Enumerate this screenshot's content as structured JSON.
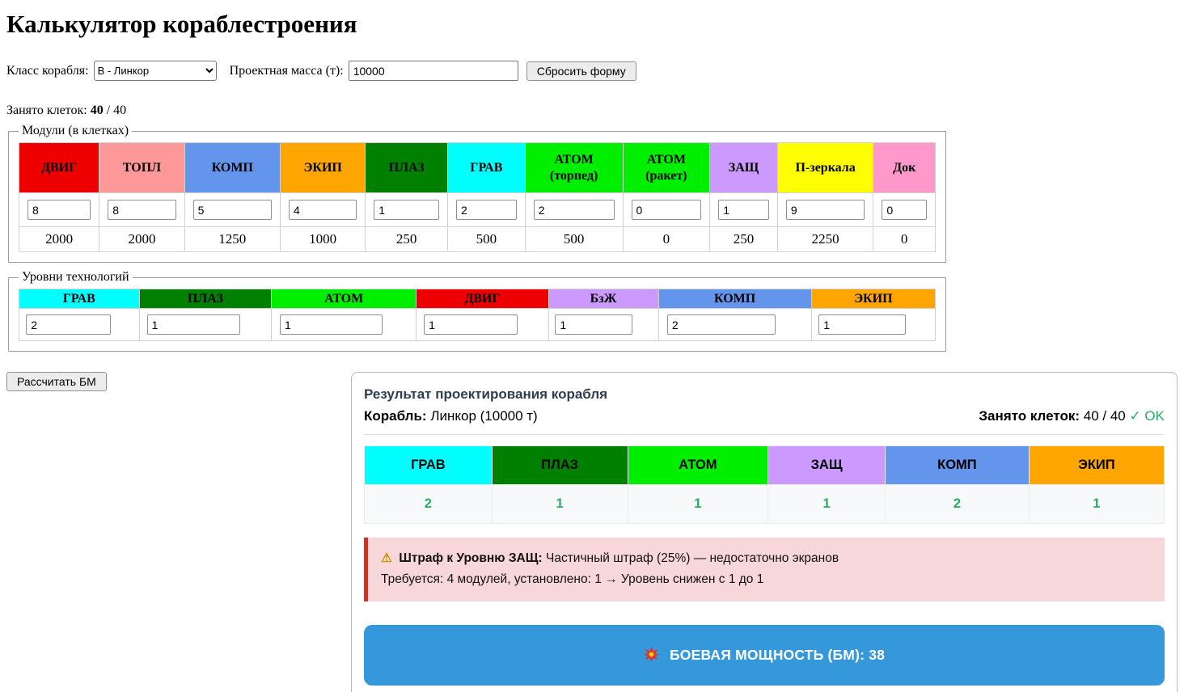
{
  "page": {
    "title": "Калькулятор кораблестроения"
  },
  "form": {
    "ship_class_label": "Класс корабля:",
    "ship_class_value": "В - Линкор",
    "mass_label": "Проектная масса (т):",
    "mass_value": "10000",
    "reset_button": "Сбросить форму"
  },
  "cells_counter": {
    "label": "Занято клеток:",
    "used": "40",
    "separator": " / ",
    "total": "40"
  },
  "modules": {
    "legend": "Модули (в клетках)",
    "columns": [
      {
        "name": "ДВИГ",
        "sub": "",
        "color": "#ee0000",
        "count": "8",
        "tons": "2000"
      },
      {
        "name": "ТОПЛ",
        "sub": "",
        "color": "#ff9999",
        "count": "8",
        "tons": "2000"
      },
      {
        "name": "КОМП",
        "sub": "",
        "color": "#6495ed",
        "count": "5",
        "tons": "1250"
      },
      {
        "name": "ЭКИП",
        "sub": "",
        "color": "#ffa500",
        "count": "4",
        "tons": "1000"
      },
      {
        "name": "ПЛАЗ",
        "sub": "",
        "color": "#008000",
        "count": "1",
        "tons": "250"
      },
      {
        "name": "ГРАВ",
        "sub": "",
        "color": "#00ffff",
        "count": "2",
        "tons": "500"
      },
      {
        "name": "АТОМ",
        "sub": "(торпед)",
        "color": "#00ee00",
        "count": "2",
        "tons": "500"
      },
      {
        "name": "АТОМ",
        "sub": "(ракет)",
        "color": "#00ee00",
        "count": "0",
        "tons": "0"
      },
      {
        "name": "ЗАЩ",
        "sub": "",
        "color": "#cc99ff",
        "count": "1",
        "tons": "250"
      },
      {
        "name": "П-зеркала",
        "sub": "",
        "color": "#ffff00",
        "count": "9",
        "tons": "2250"
      },
      {
        "name": "Док",
        "sub": "",
        "color": "#ff99cc",
        "count": "0",
        "tons": "0"
      }
    ]
  },
  "tech": {
    "legend": "Уровни технологий",
    "columns": [
      {
        "name": "ГРАВ",
        "color": "#00ffff",
        "level": "2"
      },
      {
        "name": "ПЛАЗ",
        "color": "#008000",
        "level": "1"
      },
      {
        "name": "АТОМ",
        "color": "#00ee00",
        "level": "1"
      },
      {
        "name": "ДВИГ",
        "color": "#ee0000",
        "level": "1"
      },
      {
        "name": "БзЖ",
        "color": "#cc99ff",
        "level": "1"
      },
      {
        "name": "КОМП",
        "color": "#6495ed",
        "level": "2"
      },
      {
        "name": "ЭКИП",
        "color": "#ffa500",
        "level": "1"
      }
    ]
  },
  "calc_button": "Рассчитать БМ",
  "result": {
    "title": "Результат проектирования корабля",
    "ship_label": "Корабль:",
    "ship_value": " Линкор (10000 т)",
    "cells_label": "Занято клеток:",
    "cells_value": " 40 / 40 ",
    "cells_ok": "✓ OK",
    "table": [
      {
        "name": "ГРАВ",
        "color": "#00ffff",
        "level": "2"
      },
      {
        "name": "ПЛАЗ",
        "color": "#008000",
        "level": "1"
      },
      {
        "name": "АТОМ",
        "color": "#00ee00",
        "level": "1"
      },
      {
        "name": "ЗАЩ",
        "color": "#cc99ff",
        "level": "1"
      },
      {
        "name": "КОМП",
        "color": "#6495ed",
        "level": "2"
      },
      {
        "name": "ЭКИП",
        "color": "#ffa500",
        "level": "1"
      }
    ],
    "warning": {
      "icon_glyph": "⚠",
      "icon_name": "warning-triangle-icon",
      "bold": "Штраф к Уровню ЗАЩ:",
      "text": " Частичный штраф (25%) — недостаточно экранов",
      "line2": "Требуется: 4 модулей, установлено: 1 → Уровень снижен с 1 до 1"
    },
    "power": {
      "icon_name": "explosion-icon",
      "text": "БОЕВАЯ МОЩНОСТЬ (БМ): 38"
    }
  },
  "colors": {
    "accent_blue": "#3498db",
    "success_green": "#27ae60",
    "warning_bg": "#f8d7da",
    "warning_border": "#c0392b",
    "panel_heading": "#2c3e50"
  }
}
